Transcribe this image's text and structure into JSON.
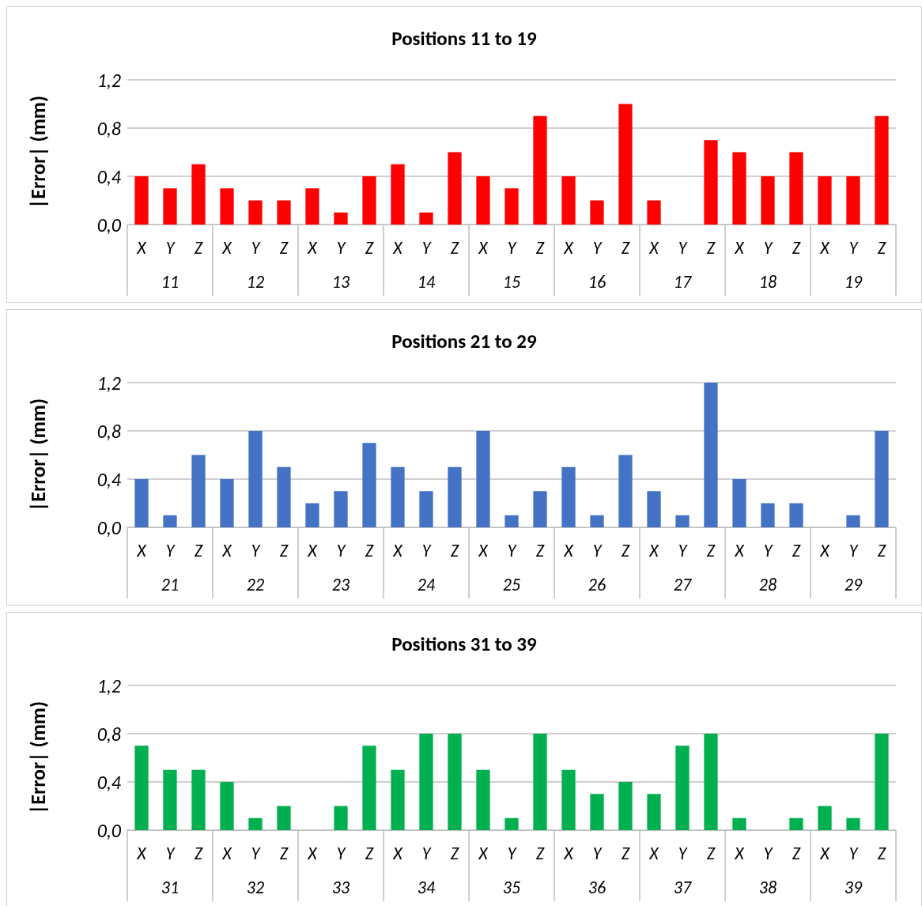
{
  "chart_data": [
    {
      "type": "bar",
      "title": "Positions 11 to 19",
      "ylabel": "|Error| (mm)",
      "categories": [
        "X",
        "Y",
        "Z",
        "X",
        "Y",
        "Z",
        "X",
        "Y",
        "Z",
        "X",
        "Y",
        "Z",
        "X",
        "Y",
        "Z",
        "X",
        "Y",
        "Z",
        "X",
        "Y",
        "Z",
        "X",
        "Y",
        "Z",
        "X",
        "Y",
        "Z"
      ],
      "annotations": [
        "11",
        "12",
        "13",
        "14",
        "15",
        "16",
        "17",
        "18",
        "19"
      ],
      "series": [
        {
          "color": "#ff0000",
          "values": [
            0.4,
            0.3,
            0.5,
            0.3,
            0.2,
            0.2,
            0.3,
            0.1,
            0.4,
            0.5,
            0.1,
            0.6,
            0.4,
            0.3,
            0.9,
            0.4,
            0.2,
            1.0,
            0.2,
            0,
            0.7,
            0.6,
            0.4,
            0.6,
            0.4,
            0.4,
            0.9
          ]
        }
      ],
      "ylim": [
        0,
        1.2
      ],
      "yticks": [
        {
          "value": 0,
          "label": "0,0"
        },
        {
          "value": 0.4,
          "label": "0,4"
        },
        {
          "value": 0.8,
          "label": "0,8"
        },
        {
          "value": 1.2,
          "label": "1,2"
        }
      ],
      "grid": "y"
    },
    {
      "type": "bar",
      "title": "Positions 21 to 29",
      "ylabel": "|Error| (mm)",
      "categories": [
        "X",
        "Y",
        "Z",
        "X",
        "Y",
        "Z",
        "X",
        "Y",
        "Z",
        "X",
        "Y",
        "Z",
        "X",
        "Y",
        "Z",
        "X",
        "Y",
        "Z",
        "X",
        "Y",
        "Z",
        "X",
        "Y",
        "Z",
        "X",
        "Y",
        "Z"
      ],
      "annotations": [
        "21",
        "22",
        "23",
        "24",
        "25",
        "26",
        "27",
        "28",
        "29"
      ],
      "series": [
        {
          "color": "#4472c4",
          "values": [
            0.4,
            0.1,
            0.6,
            0.4,
            0.8,
            0.5,
            0.2,
            0.3,
            0.7,
            0.5,
            0.3,
            0.5,
            0.8,
            0.1,
            0.3,
            0.5,
            0.1,
            0.6,
            0.3,
            0.1,
            1.2,
            0.4,
            0.2,
            0.2,
            0,
            0.1,
            0.8
          ]
        }
      ],
      "ylim": [
        0,
        1.2
      ],
      "yticks": [
        {
          "value": 0,
          "label": "0,0"
        },
        {
          "value": 0.4,
          "label": "0,4"
        },
        {
          "value": 0.8,
          "label": "0,8"
        },
        {
          "value": 1.2,
          "label": "1,2"
        }
      ],
      "grid": "y"
    },
    {
      "type": "bar",
      "title": "Positions 31 to 39",
      "ylabel": "|Error| (mm)",
      "categories": [
        "X",
        "Y",
        "Z",
        "X",
        "Y",
        "Z",
        "X",
        "Y",
        "Z",
        "X",
        "Y",
        "Z",
        "X",
        "Y",
        "Z",
        "X",
        "Y",
        "Z",
        "X",
        "Y",
        "Z",
        "X",
        "Y",
        "Z",
        "X",
        "Y",
        "Z"
      ],
      "annotations": [
        "31",
        "32",
        "33",
        "34",
        "35",
        "36",
        "37",
        "38",
        "39"
      ],
      "series": [
        {
          "color": "#00b050",
          "values": [
            0.7,
            0.5,
            0.5,
            0.4,
            0.1,
            0.2,
            0,
            0.2,
            0.7,
            0.5,
            0.8,
            0.8,
            0.5,
            0.1,
            0.8,
            0.5,
            0.3,
            0.4,
            0.3,
            0.7,
            0.8,
            0.1,
            0,
            0.1,
            0.2,
            0.1,
            0.8
          ]
        }
      ],
      "ylim": [
        0,
        1.2
      ],
      "yticks": [
        {
          "value": 0,
          "label": "0,0"
        },
        {
          "value": 0.4,
          "label": "0,4"
        },
        {
          "value": 0.8,
          "label": "0,8"
        },
        {
          "value": 1.2,
          "label": "1,2"
        }
      ],
      "grid": "y"
    }
  ]
}
